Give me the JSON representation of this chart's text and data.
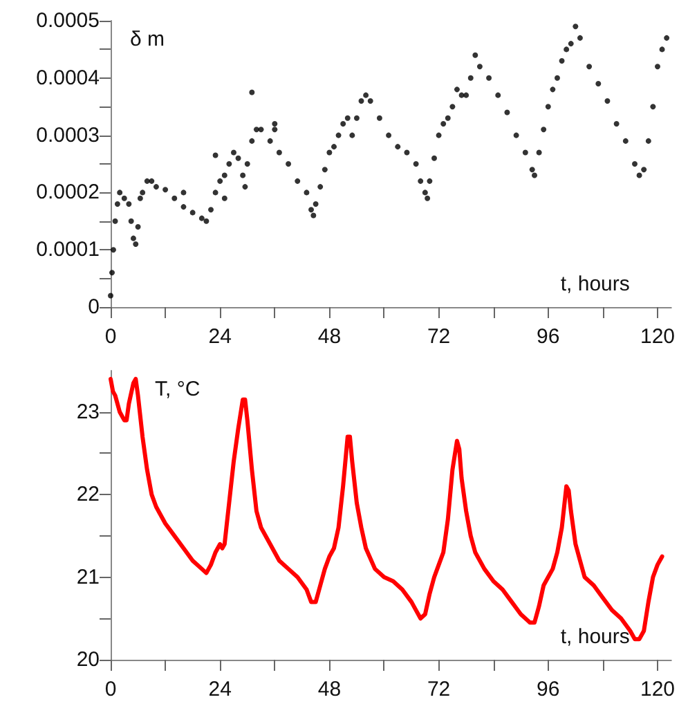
{
  "chart_data": [
    {
      "type": "scatter",
      "xlabel": "t, hours",
      "ylabel": "δ m",
      "marker": "circle",
      "grid": false,
      "color": "#000000",
      "x": [
        0,
        0.3,
        0.6,
        1,
        1.5,
        2,
        3,
        4,
        4.5,
        5,
        5.5,
        6,
        6.5,
        7,
        8,
        9,
        10,
        12,
        14,
        16,
        18,
        20,
        21,
        22,
        23,
        24,
        25,
        26,
        27,
        28,
        29,
        29.5,
        30,
        31,
        32,
        33,
        35,
        37,
        39,
        41,
        43,
        44,
        44.5,
        45,
        46,
        47,
        48,
        49,
        50,
        51,
        52,
        53,
        54,
        55,
        56,
        57,
        59,
        61,
        63,
        65,
        67,
        68,
        69,
        69.5,
        70,
        71,
        72,
        73,
        74,
        75,
        76,
        77,
        78,
        79,
        80,
        81,
        83,
        85,
        87,
        89,
        91,
        92.5,
        93,
        94,
        95,
        96,
        97,
        98,
        99,
        100,
        101,
        102,
        103,
        105,
        107,
        109,
        111,
        113,
        115,
        116,
        117,
        118,
        119,
        120,
        121,
        122,
        31,
        36,
        36,
        23,
        16,
        25
      ],
      "values": [
        2e-05,
        6e-05,
        0.0001,
        0.00015,
        0.00018,
        0.0002,
        0.00019,
        0.00018,
        0.00015,
        0.00012,
        0.00011,
        0.00014,
        0.00019,
        0.0002,
        0.00022,
        0.00022,
        0.00021,
        0.000205,
        0.00019,
        0.000175,
        0.000165,
        0.000155,
        0.00015,
        0.00017,
        0.0002,
        0.00022,
        0.00023,
        0.00025,
        0.00027,
        0.00026,
        0.00023,
        0.00021,
        0.00025,
        0.00029,
        0.00031,
        0.00031,
        0.00029,
        0.00027,
        0.00025,
        0.00022,
        0.0002,
        0.00017,
        0.00016,
        0.00018,
        0.00021,
        0.00024,
        0.00027,
        0.00028,
        0.0003,
        0.00032,
        0.00033,
        0.0003,
        0.00033,
        0.00036,
        0.00037,
        0.00036,
        0.00033,
        0.0003,
        0.00028,
        0.00027,
        0.00025,
        0.00022,
        0.0002,
        0.00019,
        0.00022,
        0.00026,
        0.0003,
        0.00032,
        0.00033,
        0.00035,
        0.00038,
        0.00037,
        0.00037,
        0.0004,
        0.00044,
        0.00042,
        0.0004,
        0.00037,
        0.00034,
        0.0003,
        0.00027,
        0.00024,
        0.00023,
        0.00027,
        0.00031,
        0.00035,
        0.00038,
        0.0004,
        0.00043,
        0.00045,
        0.00046,
        0.00049,
        0.00047,
        0.00042,
        0.00039,
        0.00036,
        0.00032,
        0.00029,
        0.00025,
        0.00023,
        0.00024,
        0.00029,
        0.00035,
        0.00042,
        0.00045,
        0.00047,
        0.000375,
        0.00032,
        0.00031,
        0.000265,
        0.0002,
        0.00019
      ],
      "xlim": [
        0,
        123
      ],
      "xticks": [
        0,
        {
          "value": 12,
          "label": null
        },
        24,
        {
          "value": 36,
          "label": null
        },
        48,
        {
          "value": 60,
          "label": null
        },
        72,
        {
          "value": 84,
          "label": null
        },
        96,
        {
          "value": 108,
          "label": null
        },
        120
      ],
      "ylim": [
        0,
        0.0005
      ],
      "yticks": [
        0,
        {
          "value": 5e-05,
          "label": null
        },
        0.0001,
        {
          "value": 0.00015,
          "label": null
        },
        0.0002,
        {
          "value": 0.00025,
          "label": null
        },
        0.0003,
        {
          "value": 0.00035,
          "label": null
        },
        0.0004,
        {
          "value": 0.00045,
          "label": null
        },
        0.0005
      ]
    },
    {
      "type": "line",
      "xlabel": "t, hours",
      "ylabel": "T, °C",
      "marker": "none",
      "line_style": "solid",
      "grid": false,
      "color": "#ff0000",
      "x": [
        0,
        0.5,
        1,
        2,
        3,
        3.5,
        4,
        5,
        5.5,
        6,
        7,
        8,
        9,
        10,
        12,
        14,
        16,
        18,
        20,
        21,
        22,
        23,
        24,
        24.5,
        25,
        26,
        27,
        28,
        29,
        29.5,
        30,
        31,
        32,
        33,
        35,
        37,
        39,
        41,
        43,
        44,
        45,
        46,
        47,
        48,
        49,
        50,
        51,
        52,
        52.5,
        53,
        54,
        55,
        56,
        58,
        60,
        62,
        64,
        66,
        67,
        68,
        69,
        70,
        71,
        72,
        73,
        74,
        75,
        76,
        76.5,
        77,
        78,
        79,
        80,
        82,
        84,
        86,
        88,
        90,
        92,
        93,
        94,
        95,
        96,
        97,
        98,
        99,
        100,
        100.5,
        101,
        102,
        103,
        104,
        106,
        108,
        110,
        112,
        114,
        115,
        116,
        117,
        118,
        119,
        120,
        121
      ],
      "values": [
        23.4,
        23.25,
        23.2,
        23,
        22.9,
        22.9,
        23.1,
        23.35,
        23.4,
        23.2,
        22.7,
        22.3,
        22,
        21.85,
        21.65,
        21.5,
        21.35,
        21.2,
        21.1,
        21.05,
        21.15,
        21.3,
        21.4,
        21.35,
        21.4,
        21.9,
        22.4,
        22.8,
        23.15,
        23.15,
        22.9,
        22.3,
        21.8,
        21.6,
        21.4,
        21.2,
        21.1,
        21,
        20.85,
        20.7,
        20.7,
        20.9,
        21.1,
        21.25,
        21.35,
        21.6,
        22.1,
        22.7,
        22.7,
        22.4,
        21.9,
        21.6,
        21.35,
        21.1,
        21,
        20.95,
        20.85,
        20.7,
        20.6,
        20.5,
        20.55,
        20.8,
        21,
        21.15,
        21.3,
        21.7,
        22.3,
        22.65,
        22.55,
        22.2,
        21.8,
        21.5,
        21.3,
        21.1,
        20.95,
        20.85,
        20.7,
        20.55,
        20.45,
        20.45,
        20.65,
        20.9,
        21,
        21.1,
        21.3,
        21.6,
        22.1,
        22.05,
        21.8,
        21.4,
        21.2,
        21,
        20.9,
        20.75,
        20.6,
        20.5,
        20.35,
        20.25,
        20.25,
        20.35,
        20.7,
        21,
        21.15,
        21.25
      ],
      "xlim": [
        0,
        123
      ],
      "xticks": [
        0,
        {
          "value": 12,
          "label": null
        },
        24,
        {
          "value": 36,
          "label": null
        },
        48,
        {
          "value": 60,
          "label": null
        },
        72,
        {
          "value": 84,
          "label": null
        },
        96,
        {
          "value": 108,
          "label": null
        },
        120
      ],
      "ylim": [
        20,
        23.5
      ],
      "yticks": [
        20,
        {
          "value": 20.5,
          "label": null
        },
        21,
        {
          "value": 21.5,
          "label": null
        },
        22,
        {
          "value": 22.5,
          "label": null
        },
        23
      ]
    }
  ]
}
